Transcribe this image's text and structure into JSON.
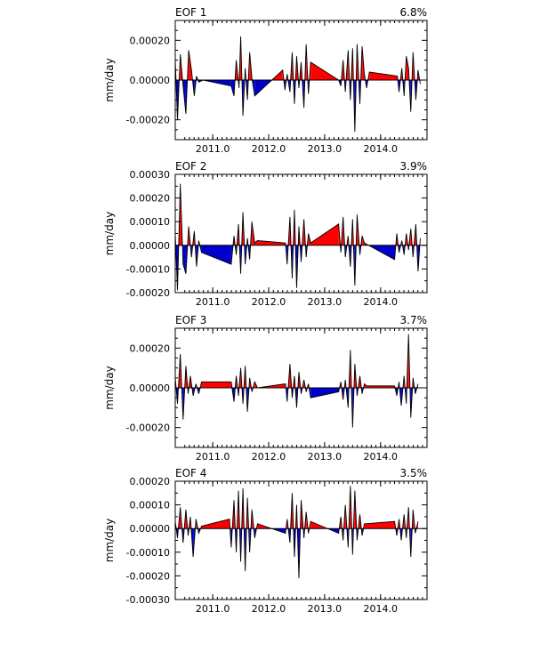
{
  "chart_data": [
    {
      "type": "area",
      "title": "EOF 1",
      "variance": "6.8%",
      "ylabel": "mm/day",
      "ylim": [
        -0.0003,
        0.0003
      ],
      "yticks": [
        0.0002,
        0.0,
        -0.0002
      ],
      "ytick_labels": [
        "0.00020",
        "0.00000",
        "-0.00020"
      ],
      "xlim": [
        2010.33,
        2014.83
      ],
      "xticks": [
        2011.0,
        2012.0,
        2013.0,
        2014.0
      ],
      "xtick_labels": [
        "2011.0",
        "2012.0",
        "2013.0",
        "2014.0"
      ],
      "colors": {
        "positive": "#ff0000",
        "negative": "#0000cc",
        "line": "#000000"
      },
      "series": [
        {
          "x": 2010.33,
          "y": 0.0001
        },
        {
          "x": 2010.37,
          "y": -0.0002
        },
        {
          "x": 2010.42,
          "y": 0.00013
        },
        {
          "x": 2010.47,
          "y": -3e-05
        },
        {
          "x": 2010.52,
          "y": -0.00017
        },
        {
          "x": 2010.57,
          "y": 0.00015
        },
        {
          "x": 2010.62,
          "y": 5e-05
        },
        {
          "x": 2010.67,
          "y": -8e-05
        },
        {
          "x": 2010.71,
          "y": 2e-05
        },
        {
          "x": 2010.75,
          "y": -1e-05
        },
        {
          "x": 2010.83,
          "y": 0.0
        },
        {
          "x": 2011.33,
          "y": -3e-05
        },
        {
          "x": 2011.38,
          "y": -8e-05
        },
        {
          "x": 2011.42,
          "y": 0.0001
        },
        {
          "x": 2011.47,
          "y": -4e-05
        },
        {
          "x": 2011.5,
          "y": 0.00022
        },
        {
          "x": 2011.54,
          "y": -0.00018
        },
        {
          "x": 2011.58,
          "y": 6e-05
        },
        {
          "x": 2011.62,
          "y": -0.0001
        },
        {
          "x": 2011.66,
          "y": 0.00014
        },
        {
          "x": 2011.7,
          "y": 1e-05
        },
        {
          "x": 2011.75,
          "y": -8e-05
        },
        {
          "x": 2012.25,
          "y": 5e-05
        },
        {
          "x": 2012.29,
          "y": -5e-05
        },
        {
          "x": 2012.33,
          "y": 3e-05
        },
        {
          "x": 2012.38,
          "y": -6e-05
        },
        {
          "x": 2012.42,
          "y": 0.00014
        },
        {
          "x": 2012.46,
          "y": -0.00012
        },
        {
          "x": 2012.5,
          "y": 0.00012
        },
        {
          "x": 2012.54,
          "y": -4e-05
        },
        {
          "x": 2012.58,
          "y": 9e-05
        },
        {
          "x": 2012.63,
          "y": -0.00014
        },
        {
          "x": 2012.67,
          "y": 0.00018
        },
        {
          "x": 2012.71,
          "y": -7e-05
        },
        {
          "x": 2012.75,
          "y": 9e-05
        },
        {
          "x": 2013.25,
          "y": 0.0
        },
        {
          "x": 2013.29,
          "y": -3e-05
        },
        {
          "x": 2013.33,
          "y": 0.0001
        },
        {
          "x": 2013.37,
          "y": -6e-05
        },
        {
          "x": 2013.42,
          "y": 0.00015
        },
        {
          "x": 2013.46,
          "y": -0.0001
        },
        {
          "x": 2013.5,
          "y": 0.00016
        },
        {
          "x": 2013.54,
          "y": -0.00026
        },
        {
          "x": 2013.58,
          "y": 0.00018
        },
        {
          "x": 2013.63,
          "y": -0.00012
        },
        {
          "x": 2013.67,
          "y": 0.00017
        },
        {
          "x": 2013.71,
          "y": 3e-05
        },
        {
          "x": 2013.75,
          "y": -4e-05
        },
        {
          "x": 2013.8,
          "y": 4e-05
        },
        {
          "x": 2014.3,
          "y": 2e-05
        },
        {
          "x": 2014.33,
          "y": -6e-05
        },
        {
          "x": 2014.38,
          "y": 6e-05
        },
        {
          "x": 2014.42,
          "y": -8e-05
        },
        {
          "x": 2014.46,
          "y": 0.00012
        },
        {
          "x": 2014.5,
          "y": 6e-05
        },
        {
          "x": 2014.54,
          "y": -0.00016
        },
        {
          "x": 2014.58,
          "y": 0.00014
        },
        {
          "x": 2014.63,
          "y": -0.0001
        },
        {
          "x": 2014.67,
          "y": 5e-05
        },
        {
          "x": 2014.71,
          "y": -2e-05
        }
      ]
    },
    {
      "type": "area",
      "title": "EOF 2",
      "variance": "3.9%",
      "ylabel": "mm/day",
      "ylim": [
        -0.0002,
        0.0003
      ],
      "yticks": [
        0.0003,
        0.0002,
        0.0001,
        0.0,
        -0.0001,
        -0.0002
      ],
      "ytick_labels": [
        "0.00030",
        "0.00020",
        "0.00010",
        "0.00000",
        "-0.00010",
        "-0.00020"
      ],
      "xlim": [
        2010.33,
        2014.83
      ],
      "xticks": [
        2011.0,
        2012.0,
        2013.0,
        2014.0
      ],
      "xtick_labels": [
        "2011.0",
        "2012.0",
        "2013.0",
        "2014.0"
      ],
      "colors": {
        "positive": "#ff0000",
        "negative": "#0000cc",
        "line": "#000000"
      },
      "series": [
        {
          "x": 2010.33,
          "y": 5e-05
        },
        {
          "x": 2010.37,
          "y": -0.00019
        },
        {
          "x": 2010.42,
          "y": 0.00026
        },
        {
          "x": 2010.47,
          "y": -8e-05
        },
        {
          "x": 2010.52,
          "y": -0.00012
        },
        {
          "x": 2010.57,
          "y": 8e-05
        },
        {
          "x": 2010.62,
          "y": -5e-05
        },
        {
          "x": 2010.67,
          "y": 6e-05
        },
        {
          "x": 2010.71,
          "y": -9e-05
        },
        {
          "x": 2010.75,
          "y": 2e-05
        },
        {
          "x": 2010.8,
          "y": -3e-05
        },
        {
          "x": 2011.33,
          "y": -8e-05
        },
        {
          "x": 2011.38,
          "y": 4e-05
        },
        {
          "x": 2011.42,
          "y": -4e-05
        },
        {
          "x": 2011.46,
          "y": 9e-05
        },
        {
          "x": 2011.5,
          "y": -0.00012
        },
        {
          "x": 2011.54,
          "y": 0.00014
        },
        {
          "x": 2011.58,
          "y": -8e-05
        },
        {
          "x": 2011.62,
          "y": 3e-05
        },
        {
          "x": 2011.66,
          "y": -6e-05
        },
        {
          "x": 2011.7,
          "y": 0.0001
        },
        {
          "x": 2011.75,
          "y": 1e-05
        },
        {
          "x": 2011.8,
          "y": 2e-05
        },
        {
          "x": 2012.3,
          "y": 1e-05
        },
        {
          "x": 2012.33,
          "y": -8e-05
        },
        {
          "x": 2012.38,
          "y": 0.00012
        },
        {
          "x": 2012.42,
          "y": -0.00014
        },
        {
          "x": 2012.46,
          "y": 0.00015
        },
        {
          "x": 2012.5,
          "y": -0.00018
        },
        {
          "x": 2012.54,
          "y": 8e-05
        },
        {
          "x": 2012.58,
          "y": -7e-05
        },
        {
          "x": 2012.63,
          "y": 0.00011
        },
        {
          "x": 2012.67,
          "y": -5e-05
        },
        {
          "x": 2012.71,
          "y": 5e-05
        },
        {
          "x": 2012.75,
          "y": 1e-05
        },
        {
          "x": 2013.25,
          "y": 9e-05
        },
        {
          "x": 2013.29,
          "y": -3e-05
        },
        {
          "x": 2013.33,
          "y": 0.00012
        },
        {
          "x": 2013.37,
          "y": -5e-05
        },
        {
          "x": 2013.42,
          "y": 4e-05
        },
        {
          "x": 2013.46,
          "y": -9e-05
        },
        {
          "x": 2013.5,
          "y": 0.00011
        },
        {
          "x": 2013.54,
          "y": -0.00017
        },
        {
          "x": 2013.58,
          "y": 0.00013
        },
        {
          "x": 2013.63,
          "y": -4e-05
        },
        {
          "x": 2013.67,
          "y": 4e-05
        },
        {
          "x": 2013.71,
          "y": 1e-05
        },
        {
          "x": 2014.25,
          "y": -6e-05
        },
        {
          "x": 2014.29,
          "y": 5e-05
        },
        {
          "x": 2014.33,
          "y": -3e-05
        },
        {
          "x": 2014.38,
          "y": 2e-05
        },
        {
          "x": 2014.42,
          "y": -4e-05
        },
        {
          "x": 2014.46,
          "y": 5e-05
        },
        {
          "x": 2014.5,
          "y": -2e-05
        },
        {
          "x": 2014.54,
          "y": 7e-05
        },
        {
          "x": 2014.58,
          "y": -5e-05
        },
        {
          "x": 2014.63,
          "y": 9e-05
        },
        {
          "x": 2014.67,
          "y": -0.00011
        },
        {
          "x": 2014.71,
          "y": 3e-05
        }
      ]
    },
    {
      "type": "area",
      "title": "EOF 3",
      "variance": "3.7%",
      "ylabel": "mm/day",
      "ylim": [
        -0.0003,
        0.0003
      ],
      "yticks": [
        0.0002,
        0.0,
        -0.0002
      ],
      "ytick_labels": [
        "0.00020",
        "0.00000",
        "-0.00020"
      ],
      "xlim": [
        2010.33,
        2014.83
      ],
      "xticks": [
        2011.0,
        2012.0,
        2013.0,
        2014.0
      ],
      "xtick_labels": [
        "2011.0",
        "2012.0",
        "2013.0",
        "2014.0"
      ],
      "colors": {
        "positive": "#ff0000",
        "negative": "#0000cc",
        "line": "#000000"
      },
      "series": [
        {
          "x": 2010.33,
          "y": 5e-05
        },
        {
          "x": 2010.37,
          "y": -8e-05
        },
        {
          "x": 2010.42,
          "y": 0.00017
        },
        {
          "x": 2010.47,
          "y": -0.00016
        },
        {
          "x": 2010.52,
          "y": 0.00011
        },
        {
          "x": 2010.56,
          "y": -3e-05
        },
        {
          "x": 2010.6,
          "y": 6e-05
        },
        {
          "x": 2010.65,
          "y": -4e-05
        },
        {
          "x": 2010.7,
          "y": 2e-05
        },
        {
          "x": 2010.75,
          "y": -3e-05
        },
        {
          "x": 2010.8,
          "y": 3e-05
        },
        {
          "x": 2011.33,
          "y": 3e-05
        },
        {
          "x": 2011.38,
          "y": -7e-05
        },
        {
          "x": 2011.42,
          "y": 6e-05
        },
        {
          "x": 2011.46,
          "y": -4e-05
        },
        {
          "x": 2011.5,
          "y": 0.0001
        },
        {
          "x": 2011.54,
          "y": -8e-05
        },
        {
          "x": 2011.58,
          "y": 0.00011
        },
        {
          "x": 2011.62,
          "y": -0.00012
        },
        {
          "x": 2011.66,
          "y": 5e-05
        },
        {
          "x": 2011.7,
          "y": -2e-05
        },
        {
          "x": 2011.75,
          "y": 3e-05
        },
        {
          "x": 2011.8,
          "y": 0.0
        },
        {
          "x": 2012.3,
          "y": 2e-05
        },
        {
          "x": 2012.33,
          "y": -7e-05
        },
        {
          "x": 2012.38,
          "y": 0.00012
        },
        {
          "x": 2012.42,
          "y": -5e-05
        },
        {
          "x": 2012.46,
          "y": 6e-05
        },
        {
          "x": 2012.5,
          "y": -0.0001
        },
        {
          "x": 2012.54,
          "y": 8e-05
        },
        {
          "x": 2012.58,
          "y": -3e-05
        },
        {
          "x": 2012.63,
          "y": 4e-05
        },
        {
          "x": 2012.67,
          "y": -2e-05
        },
        {
          "x": 2012.71,
          "y": 2e-05
        },
        {
          "x": 2012.75,
          "y": -5e-05
        },
        {
          "x": 2013.25,
          "y": -2e-05
        },
        {
          "x": 2013.29,
          "y": 3e-05
        },
        {
          "x": 2013.33,
          "y": -6e-05
        },
        {
          "x": 2013.37,
          "y": 4e-05
        },
        {
          "x": 2013.42,
          "y": -0.0001
        },
        {
          "x": 2013.46,
          "y": 0.00019
        },
        {
          "x": 2013.5,
          "y": -0.0002
        },
        {
          "x": 2013.54,
          "y": 0.00012
        },
        {
          "x": 2013.58,
          "y": -4e-05
        },
        {
          "x": 2013.63,
          "y": 6e-05
        },
        {
          "x": 2013.67,
          "y": -3e-05
        },
        {
          "x": 2013.71,
          "y": 2e-05
        },
        {
          "x": 2013.75,
          "y": 1e-05
        },
        {
          "x": 2014.25,
          "y": 1e-05
        },
        {
          "x": 2014.29,
          "y": -4e-05
        },
        {
          "x": 2014.33,
          "y": 3e-05
        },
        {
          "x": 2014.37,
          "y": -9e-05
        },
        {
          "x": 2014.42,
          "y": 6e-05
        },
        {
          "x": 2014.46,
          "y": -8e-05
        },
        {
          "x": 2014.5,
          "y": 0.00027
        },
        {
          "x": 2014.54,
          "y": -0.00015
        },
        {
          "x": 2014.58,
          "y": 5e-05
        },
        {
          "x": 2014.62,
          "y": -3e-05
        },
        {
          "x": 2014.67,
          "y": 2e-05
        }
      ]
    },
    {
      "type": "area",
      "title": "EOF 4",
      "variance": "3.5%",
      "ylabel": "mm/day",
      "ylim": [
        -0.0003,
        0.0002
      ],
      "yticks": [
        0.0002,
        0.0001,
        0.0,
        -0.0001,
        -0.0002,
        -0.0003
      ],
      "ytick_labels": [
        "0.00020",
        "0.00010",
        "0.00000",
        "-0.00010",
        "-0.00020",
        "-0.00030"
      ],
      "xlim": [
        2010.33,
        2014.83
      ],
      "xticks": [
        2011.0,
        2012.0,
        2013.0,
        2014.0
      ],
      "xtick_labels": [
        "2011.0",
        "2012.0",
        "2013.0",
        "2014.0"
      ],
      "colors": {
        "positive": "#ff0000",
        "negative": "#0000cc",
        "line": "#000000"
      },
      "series": [
        {
          "x": 2010.33,
          "y": 3e-05
        },
        {
          "x": 2010.37,
          "y": -4e-05
        },
        {
          "x": 2010.42,
          "y": 9e-05
        },
        {
          "x": 2010.47,
          "y": -6e-05
        },
        {
          "x": 2010.52,
          "y": 8e-05
        },
        {
          "x": 2010.56,
          "y": -3e-05
        },
        {
          "x": 2010.6,
          "y": 5e-05
        },
        {
          "x": 2010.65,
          "y": -0.00012
        },
        {
          "x": 2010.7,
          "y": 4e-05
        },
        {
          "x": 2010.75,
          "y": -2e-05
        },
        {
          "x": 2010.8,
          "y": 1e-05
        },
        {
          "x": 2011.3,
          "y": 4e-05
        },
        {
          "x": 2011.33,
          "y": -8e-05
        },
        {
          "x": 2011.38,
          "y": 0.00012
        },
        {
          "x": 2011.42,
          "y": -0.0001
        },
        {
          "x": 2011.46,
          "y": 0.00016
        },
        {
          "x": 2011.5,
          "y": -0.00014
        },
        {
          "x": 2011.54,
          "y": 0.00017
        },
        {
          "x": 2011.58,
          "y": -0.00018
        },
        {
          "x": 2011.62,
          "y": 0.00013
        },
        {
          "x": 2011.66,
          "y": -0.0001
        },
        {
          "x": 2011.7,
          "y": 8e-05
        },
        {
          "x": 2011.75,
          "y": -4e-05
        },
        {
          "x": 2011.8,
          "y": 2e-05
        },
        {
          "x": 2012.3,
          "y": -2e-05
        },
        {
          "x": 2012.33,
          "y": 4e-05
        },
        {
          "x": 2012.38,
          "y": -6e-05
        },
        {
          "x": 2012.42,
          "y": 0.00015
        },
        {
          "x": 2012.46,
          "y": -0.00012
        },
        {
          "x": 2012.5,
          "y": 0.0001
        },
        {
          "x": 2012.54,
          "y": -0.00021
        },
        {
          "x": 2012.58,
          "y": 0.00012
        },
        {
          "x": 2012.63,
          "y": -4e-05
        },
        {
          "x": 2012.67,
          "y": 7e-05
        },
        {
          "x": 2012.71,
          "y": -2e-05
        },
        {
          "x": 2012.75,
          "y": 3e-05
        },
        {
          "x": 2013.25,
          "y": -2e-05
        },
        {
          "x": 2013.29,
          "y": 5e-05
        },
        {
          "x": 2013.33,
          "y": -5e-05
        },
        {
          "x": 2013.37,
          "y": 0.0001
        },
        {
          "x": 2013.42,
          "y": -8e-05
        },
        {
          "x": 2013.46,
          "y": 0.00018
        },
        {
          "x": 2013.5,
          "y": -0.00011
        },
        {
          "x": 2013.54,
          "y": 0.00016
        },
        {
          "x": 2013.58,
          "y": -5e-05
        },
        {
          "x": 2013.63,
          "y": 6e-05
        },
        {
          "x": 2013.67,
          "y": -3e-05
        },
        {
          "x": 2013.71,
          "y": 2e-05
        },
        {
          "x": 2014.25,
          "y": 3e-05
        },
        {
          "x": 2014.29,
          "y": -3e-05
        },
        {
          "x": 2014.33,
          "y": 4e-05
        },
        {
          "x": 2014.37,
          "y": -5e-05
        },
        {
          "x": 2014.42,
          "y": 6e-05
        },
        {
          "x": 2014.46,
          "y": -4e-05
        },
        {
          "x": 2014.5,
          "y": 9e-05
        },
        {
          "x": 2014.54,
          "y": -0.00012
        },
        {
          "x": 2014.58,
          "y": 8e-05
        },
        {
          "x": 2014.62,
          "y": -2e-05
        },
        {
          "x": 2014.67,
          "y": 3e-05
        }
      ]
    }
  ]
}
